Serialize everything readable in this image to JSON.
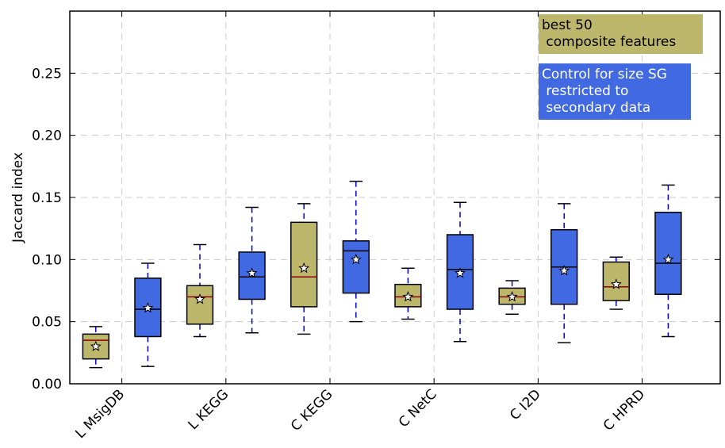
{
  "chart_data": {
    "type": "box",
    "ylabel": "Jaccard index",
    "ylim": [
      0.0,
      0.3
    ],
    "yticks": [
      "0.00",
      "0.05",
      "0.10",
      "0.15",
      "0.20",
      "0.25"
    ],
    "grid": true,
    "categories": [
      "L MsigDB",
      "L KEGG",
      "C KEGG",
      "C NetC",
      "C I2D",
      "C HPRD"
    ],
    "series": [
      {
        "name": "best 50\n composite features",
        "color": "#bdb76b",
        "median_color": "#8b0000",
        "boxes": [
          {
            "whislo": 0.013,
            "q1": 0.02,
            "med": 0.035,
            "q3": 0.04,
            "whishi": 0.046,
            "mean": 0.03
          },
          {
            "whislo": 0.038,
            "q1": 0.048,
            "med": 0.07,
            "q3": 0.079,
            "whishi": 0.112,
            "mean": 0.068
          },
          {
            "whislo": 0.04,
            "q1": 0.062,
            "med": 0.086,
            "q3": 0.13,
            "whishi": 0.145,
            "mean": 0.093
          },
          {
            "whislo": 0.052,
            "q1": 0.062,
            "med": 0.07,
            "q3": 0.08,
            "whishi": 0.093,
            "mean": 0.07
          },
          {
            "whislo": 0.056,
            "q1": 0.064,
            "med": 0.07,
            "q3": 0.077,
            "whishi": 0.083,
            "mean": 0.07
          },
          {
            "whislo": 0.06,
            "q1": 0.067,
            "med": 0.078,
            "q3": 0.098,
            "whishi": 0.102,
            "mean": 0.08
          }
        ]
      },
      {
        "name": "Control for size SG\n restricted to\n secondary data",
        "color": "#4169e1",
        "median_color": "#000000",
        "boxes": [
          {
            "whislo": 0.014,
            "q1": 0.038,
            "med": 0.06,
            "q3": 0.085,
            "whishi": 0.097,
            "mean": 0.061
          },
          {
            "whislo": 0.041,
            "q1": 0.068,
            "med": 0.086,
            "q3": 0.106,
            "whishi": 0.142,
            "mean": 0.089
          },
          {
            "whislo": 0.05,
            "q1": 0.073,
            "med": 0.107,
            "q3": 0.115,
            "whishi": 0.163,
            "mean": 0.1
          },
          {
            "whislo": 0.034,
            "q1": 0.06,
            "med": 0.092,
            "q3": 0.12,
            "whishi": 0.146,
            "mean": 0.089
          },
          {
            "whislo": 0.033,
            "q1": 0.064,
            "med": 0.094,
            "q3": 0.124,
            "whishi": 0.145,
            "mean": 0.091
          },
          {
            "whislo": 0.038,
            "q1": 0.072,
            "med": 0.097,
            "q3": 0.138,
            "whishi": 0.16,
            "mean": 0.1
          }
        ]
      }
    ],
    "legend": {
      "placement": "top-right",
      "items": [
        {
          "lines": [
            "best 50",
            " composite features"
          ],
          "bg": "#bdb76b",
          "fg": "#000000"
        },
        {
          "lines": [
            "Control for size SG",
            " restricted to",
            " secondary data"
          ],
          "bg": "#4169e1",
          "fg": "#ffffff"
        }
      ]
    }
  }
}
